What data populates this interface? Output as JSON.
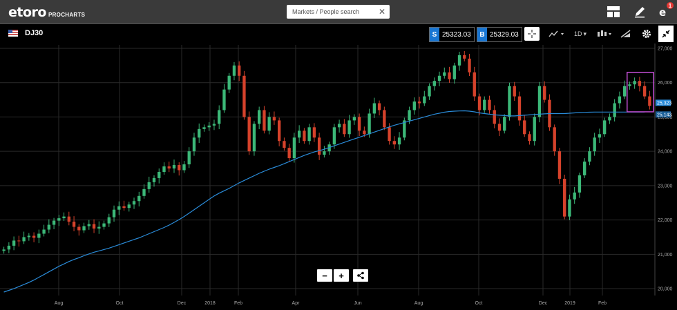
{
  "app": {
    "logo_text": "etoro",
    "logo_sub": "PROCHARTS"
  },
  "search": {
    "placeholder": "Markets / People search",
    "value": ""
  },
  "header_icons": [
    "layout-icon",
    "edit-icon",
    "notifications-icon"
  ],
  "notification_count": "1",
  "instrument": {
    "name": "DJ30"
  },
  "sell": {
    "label": "S",
    "price": "25323.03"
  },
  "buy": {
    "label": "B",
    "price": "25329.03"
  },
  "timeframe": "1D",
  "colors": {
    "up": "#3cb878",
    "down": "#d6422b",
    "ma": "#2a8bd8",
    "accent": "#1976d2",
    "highlight_box": "#c44fd6"
  },
  "chart_data": {
    "type": "candlestick",
    "yticks": [
      "27,000",
      "26,000",
      "25,000",
      "24,000",
      "23,000",
      "22,000",
      "21,000",
      "20,000"
    ],
    "xticks": [
      "Aug",
      "Oct",
      "Dec",
      "2018",
      "Feb",
      "Apr",
      "Jun",
      "Aug",
      "Oct",
      "Dec",
      "2019",
      "Feb"
    ],
    "price_labels": {
      "current": "25,323",
      "ma": "25,143"
    },
    "ylim": [
      19800,
      27100
    ],
    "closes": [
      21140,
      21250,
      21400,
      21380,
      21500,
      21540,
      21480,
      21600,
      21720,
      21860,
      21980,
      22050,
      22100,
      21950,
      21800,
      21700,
      21820,
      21880,
      21750,
      21800,
      21900,
      22080,
      22300,
      22400,
      22350,
      22450,
      22550,
      22700,
      22900,
      23100,
      23220,
      23400,
      23560,
      23500,
      23600,
      23450,
      23620,
      24000,
      24400,
      24650,
      24700,
      24750,
      24800,
      25200,
      25800,
      26200,
      26500,
      26200,
      25000,
      24000,
      24800,
      25200,
      24600,
      25000,
      24900,
      24300,
      24100,
      23800,
      24400,
      24600,
      24300,
      24700,
      24400,
      23900,
      24000,
      24200,
      24700,
      24800,
      24500,
      24900,
      25000,
      24600,
      24500,
      25100,
      25400,
      25200,
      24700,
      24300,
      24200,
      24400,
      24900,
      25200,
      25450,
      25400,
      25600,
      25900,
      26050,
      26200,
      26300,
      26100,
      26500,
      26800,
      26700,
      26300,
      25600,
      25200,
      25500,
      25200,
      24800,
      24600,
      25000,
      25900,
      25600,
      24900,
      24500,
      24300,
      25000,
      25900,
      25500,
      24700,
      24000,
      23200,
      22100,
      22600,
      22800,
      23300,
      23700,
      24000,
      24400,
      24500,
      24900,
      25000,
      25400,
      25600,
      25900,
      25950,
      26050,
      25900,
      25600,
      25323
    ],
    "ma": [
      19900,
      19950,
      20000,
      20060,
      20120,
      20180,
      20250,
      20330,
      20410,
      20490,
      20570,
      20650,
      20720,
      20790,
      20850,
      20900,
      20960,
      21010,
      21060,
      21100,
      21140,
      21180,
      21230,
      21280,
      21330,
      21380,
      21430,
      21480,
      21540,
      21600,
      21660,
      21720,
      21780,
      21850,
      21930,
      22010,
      22100,
      22200,
      22300,
      22400,
      22500,
      22600,
      22700,
      22780,
      22850,
      22920,
      23000,
      23080,
      23150,
      23220,
      23290,
      23360,
      23420,
      23480,
      23530,
      23580,
      23640,
      23700,
      23760,
      23820,
      23880,
      23930,
      23980,
      24020,
      24060,
      24110,
      24160,
      24210,
      24260,
      24310,
      24360,
      24410,
      24460,
      24510,
      24560,
      24610,
      24660,
      24710,
      24760,
      24800,
      24840,
      24880,
      24920,
      24960,
      25000,
      25040,
      25080,
      25110,
      25140,
      25160,
      25170,
      25175,
      25180,
      25170,
      25150,
      25120,
      25100,
      25080,
      25060,
      25050,
      25040,
      25030,
      25030,
      25040,
      25050,
      25060,
      25070,
      25080,
      25090,
      25100,
      25100,
      25100,
      25100,
      25110,
      25120,
      25130,
      25135,
      25140,
      25143,
      25143,
      25143,
      25143,
      25143,
      25143,
      25143,
      25143,
      25143,
      25143,
      25143
    ]
  }
}
